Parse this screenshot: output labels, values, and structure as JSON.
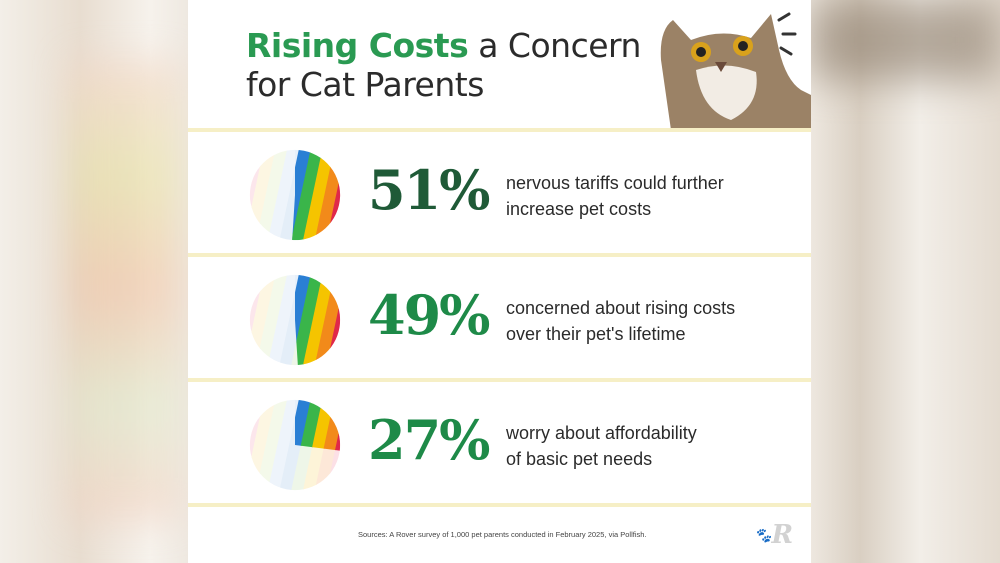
{
  "title": {
    "highlight": "Rising Costs",
    "rest_line1": " a Concern",
    "line2": "for Cat Parents"
  },
  "stats": [
    {
      "percent": 51,
      "label": "51%",
      "desc_line1": "nervous tariffs could further",
      "desc_line2": "increase pet costs",
      "color": "#1f5a37"
    },
    {
      "percent": 49,
      "label": "49%",
      "desc_line1": "concerned about rising costs",
      "desc_line2": "over their pet's lifetime",
      "color": "#1e8a48"
    },
    {
      "percent": 27,
      "label": "27%",
      "desc_line1": "worry about affordability",
      "desc_line2": "of basic pet needs",
      "color": "#1e8a48"
    }
  ],
  "source": "Sources: A Rover survey of 1,000 pet parents conducted in February 2025, via Pollfish.",
  "logo": "R",
  "colors": {
    "accent": "#2a9a52",
    "divider": "#f6efc6"
  }
}
